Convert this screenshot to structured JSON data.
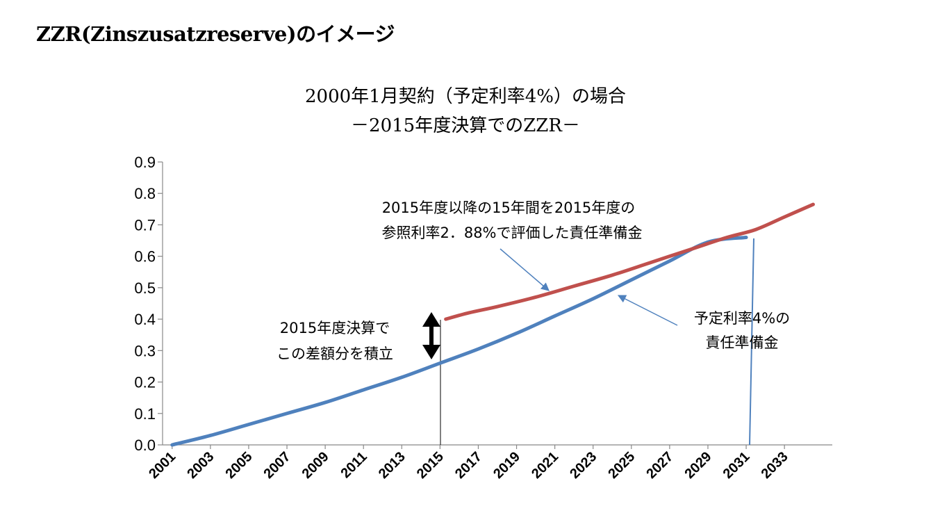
{
  "page_title": "ZZR(Zinszusatzreserve)のイメージ",
  "chart_data": {
    "type": "line",
    "title": "2000年1月契約（予定利率4%）の場合",
    "subtitle": "－2015年度決算でのZZR－",
    "xlabel": "",
    "ylabel": "",
    "ylim": [
      0,
      0.9
    ],
    "xlim": [
      2000.5,
      2035.5
    ],
    "y_ticks": [
      "0.0",
      "0.1",
      "0.2",
      "0.3",
      "0.4",
      "0.5",
      "0.6",
      "0.7",
      "0.8",
      "0.9"
    ],
    "x_ticks": [
      "2001",
      "2003",
      "2005",
      "2007",
      "2009",
      "2011",
      "2013",
      "2015",
      "2017",
      "2019",
      "2021",
      "2023",
      "2025",
      "2027",
      "2029",
      "2031",
      "2033"
    ],
    "grid": false,
    "series": [
      {
        "color": "#4F81BD",
        "x": [
          2001,
          2003,
          2005,
          2007,
          2009,
          2011,
          2013,
          2015,
          2017,
          2019,
          2021,
          2023,
          2025,
          2027,
          2029,
          2031
        ],
        "values": [
          0.0,
          0.03,
          0.065,
          0.1,
          0.135,
          0.175,
          0.215,
          0.26,
          0.305,
          0.355,
          0.41,
          0.465,
          0.525,
          0.585,
          0.645,
          0.66
        ]
      },
      {
        "color": "#C0504D",
        "x": [
          2015.3,
          2016.5,
          2018,
          2020,
          2022,
          2024,
          2026,
          2028,
          2030,
          2031.5,
          2033,
          2034.5
        ],
        "values": [
          0.4,
          0.42,
          0.44,
          0.47,
          0.505,
          0.54,
          0.58,
          0.62,
          0.66,
          0.685,
          0.725,
          0.765
        ]
      }
    ],
    "annotations": {
      "red_note": [
        "2015年度以降の15年間を2015年度の",
        "参照利率2．88%で評価した責任準備金"
      ],
      "blue_note": [
        "予定利率4%の",
        "責任準備金"
      ],
      "zzr_note": [
        "2015年度決算で",
        "この差額分を積立"
      ]
    }
  }
}
